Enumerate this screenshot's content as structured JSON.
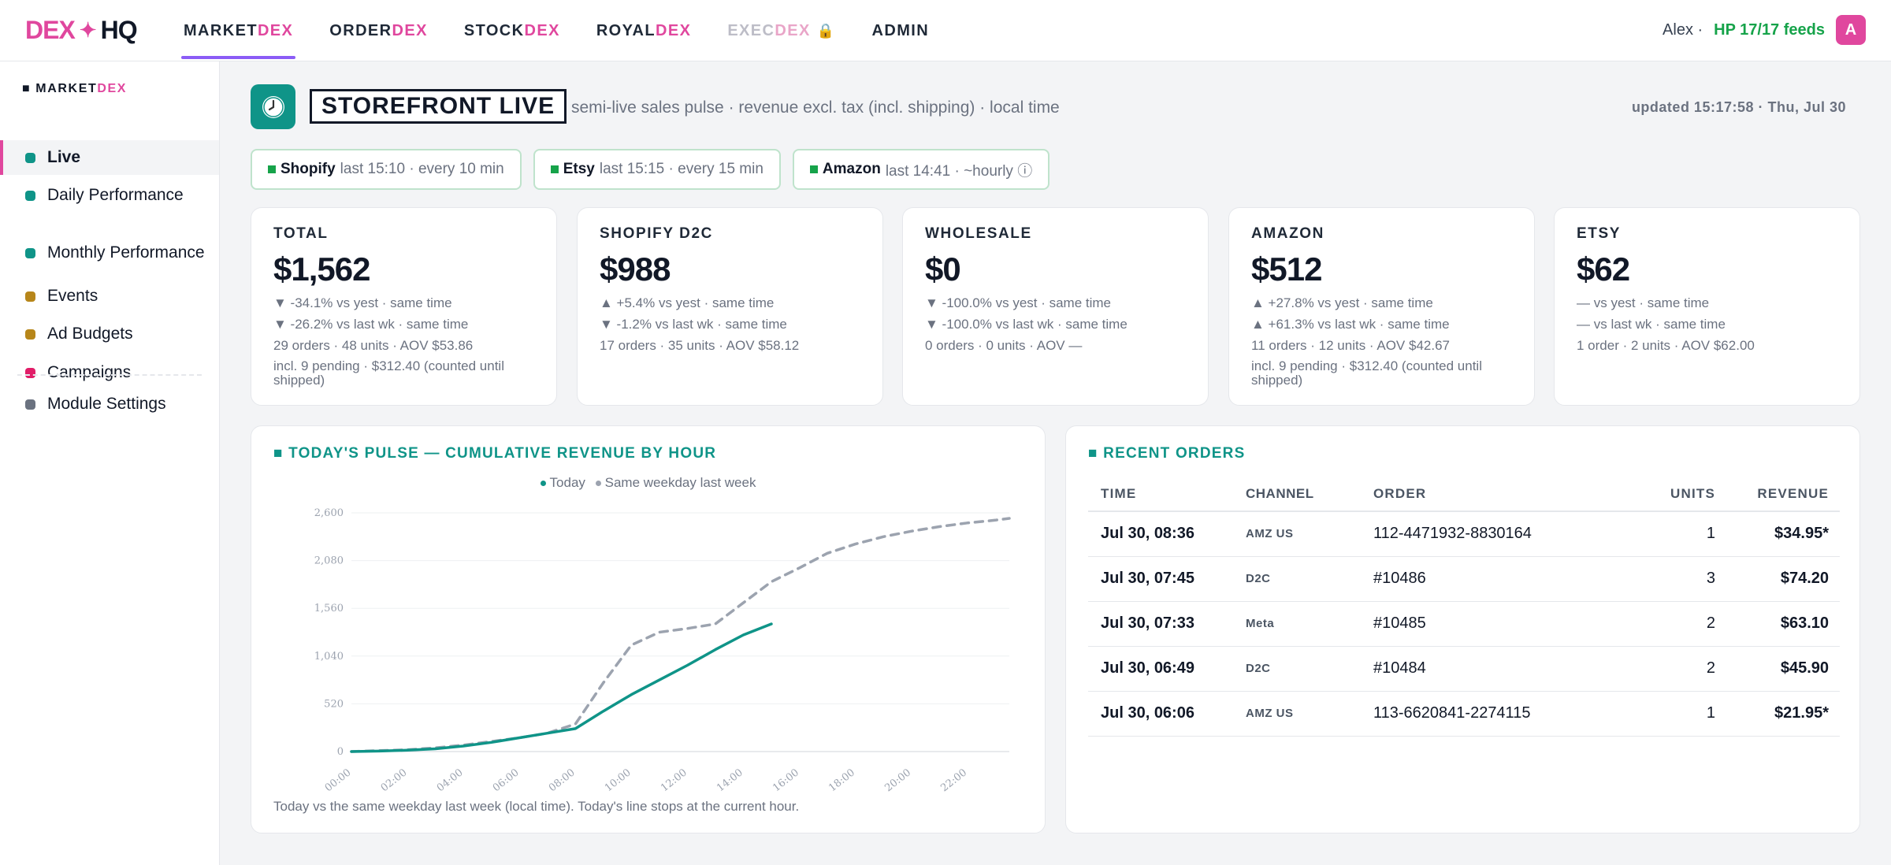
{
  "app": {
    "logo_left": "DEX",
    "logo_star": "✦",
    "logo_right": "HQ"
  },
  "nav": [
    {
      "prefix": "MARKET",
      "suffix": "DEX",
      "active": true,
      "locked": false
    },
    {
      "prefix": "ORDER",
      "suffix": "DEX",
      "active": false,
      "locked": false
    },
    {
      "prefix": "STOCK",
      "suffix": "DEX",
      "active": false,
      "locked": false
    },
    {
      "prefix": "ROYAL",
      "suffix": "DEX",
      "active": false,
      "locked": false
    },
    {
      "prefix": "EXEC",
      "suffix": "DEX",
      "active": false,
      "locked": true,
      "lock_icon": "🔒"
    },
    {
      "prefix": "ADMIN",
      "suffix": "",
      "active": false,
      "locked": false
    }
  ],
  "user": {
    "name": "Alex ·",
    "feeds": "HP 17/17 feeds",
    "avatar": "A"
  },
  "sidebar": {
    "head_prefix": "■ MARKET",
    "head_suffix": "DEX",
    "items": [
      {
        "label": "Live",
        "color": "#0f9488",
        "active": true
      },
      {
        "label": "Daily Performance",
        "color": "#0f9488",
        "active": false
      },
      {
        "label": "Monthly Performance",
        "color": "#0f9488",
        "active": false
      },
      {
        "label": "Events",
        "color": "#b7861a",
        "active": false
      },
      {
        "label": "Ad Budgets",
        "color": "#b7861a",
        "active": false
      },
      {
        "label": "Campaigns",
        "color": "#e11d68",
        "active": false
      }
    ],
    "settings": {
      "label": "Module Settings",
      "color": "#6b7280"
    }
  },
  "header": {
    "title": "STOREFRONT LIVE",
    "subtitle": "semi-live sales pulse · revenue excl. tax (incl. shipping) · local time",
    "updated": "updated 15:17:58 · Thu, Jul 30",
    "icon": "clock-icon"
  },
  "feeds": [
    {
      "name": "Shopify",
      "detail": "last 15:10 · every 10 min"
    },
    {
      "name": "Etsy",
      "detail": "last 15:15 · every 15 min"
    },
    {
      "name": "Amazon",
      "detail": "last 14:41 · ~hourly ⓘ"
    }
  ],
  "kpis": [
    {
      "label": "TOTAL",
      "value": "$1,562",
      "lines": [
        "▼ -34.1% vs yest · same time",
        "▼ -26.2% vs last wk · same time",
        "29 orders · 48 units · AOV $53.86"
      ],
      "note": "incl. 9 pending · $312.40 (counted until shipped)"
    },
    {
      "label": "SHOPIFY D2C",
      "value": "$988",
      "lines": [
        "▲ +5.4% vs yest · same time",
        "▼ -1.2% vs last wk · same time",
        "17 orders · 35 units · AOV $58.12"
      ],
      "note": ""
    },
    {
      "label": "WHOLESALE",
      "value": "$0",
      "lines": [
        "▼ -100.0% vs yest · same time",
        "▼ -100.0% vs last wk · same time",
        "0 orders · 0 units · AOV —"
      ],
      "note": ""
    },
    {
      "label": "AMAZON",
      "value": "$512",
      "lines": [
        "▲ +27.8% vs yest · same time",
        "▲ +61.3% vs last wk · same time",
        "11 orders · 12 units · AOV $42.67"
      ],
      "note": "incl. 9 pending · $312.40 (counted until shipped)"
    },
    {
      "label": "ETSY",
      "value": "$62",
      "lines": [
        "— vs yest · same time",
        "— vs last wk · same time",
        "1 order · 2 units · AOV $62.00"
      ],
      "note": ""
    }
  ],
  "pulse": {
    "title": "■ TODAY'S PULSE — CUMULATIVE REVENUE BY HOUR",
    "note": "Today vs the same weekday last week (local time). Today's line stops at the current hour."
  },
  "chart_data": {
    "type": "line",
    "title": "TODAY'S PULSE — CUMULATIVE REVENUE BY HOUR",
    "xlabel": "",
    "ylabel": "",
    "x_ticks": [
      "00:00",
      "02:00",
      "04:00",
      "06:00",
      "08:00",
      "10:00",
      "12:00",
      "14:00",
      "16:00",
      "18:00",
      "20:00",
      "22:00"
    ],
    "y_ticks": [
      "0",
      "520",
      "1,040",
      "1,560",
      "2,080",
      "2,600"
    ],
    "ylim": [
      0,
      2600
    ],
    "xlim": [
      0,
      23.5
    ],
    "grid": true,
    "legend_position": "top-center",
    "series": [
      {
        "name": "Today",
        "color": "#0f9488",
        "style": "solid",
        "x": [
          0,
          1,
          2,
          3,
          4,
          5,
          6,
          7,
          8,
          9,
          10,
          11,
          12,
          13,
          14,
          15
        ],
        "y": [
          0,
          5,
          15,
          30,
          60,
          100,
          150,
          200,
          250,
          440,
          620,
          780,
          940,
          1110,
          1270,
          1390
        ]
      },
      {
        "name": "Same weekday last week",
        "color": "#9ca3af",
        "style": "dashed",
        "x": [
          0,
          1,
          2,
          3,
          4,
          5,
          6,
          7,
          8,
          9,
          10,
          11,
          12,
          13,
          14,
          15,
          16,
          17,
          18,
          19,
          20,
          21,
          22,
          23,
          23.5
        ],
        "y": [
          0,
          10,
          20,
          40,
          70,
          110,
          150,
          200,
          300,
          750,
          1160,
          1300,
          1340,
          1390,
          1620,
          1850,
          2000,
          2160,
          2260,
          2340,
          2400,
          2450,
          2490,
          2520,
          2540
        ]
      }
    ]
  },
  "orders": {
    "title": "■ RECENT ORDERS",
    "headers": {
      "time": "TIME",
      "channel": "CHANNEL",
      "order": "ORDER",
      "units": "UNITS",
      "revenue": "REVENUE"
    },
    "rows": [
      {
        "time": "Jul 30, 08:36",
        "channel": "AMZ US",
        "order": "112-4471932-8830164",
        "units": "1",
        "revenue": "$34.95*"
      },
      {
        "time": "Jul 30, 07:45",
        "channel": "D2C",
        "order": "#10486",
        "units": "3",
        "revenue": "$74.20"
      },
      {
        "time": "Jul 30, 07:33",
        "channel": "Meta",
        "order": "#10485",
        "units": "2",
        "revenue": "$63.10"
      },
      {
        "time": "Jul 30, 06:49",
        "channel": "D2C",
        "order": "#10484",
        "units": "2",
        "revenue": "$45.90"
      },
      {
        "time": "Jul 30, 06:06",
        "channel": "AMZ US",
        "order": "113-6620841-2274115",
        "units": "1",
        "revenue": "$21.95*"
      }
    ]
  }
}
